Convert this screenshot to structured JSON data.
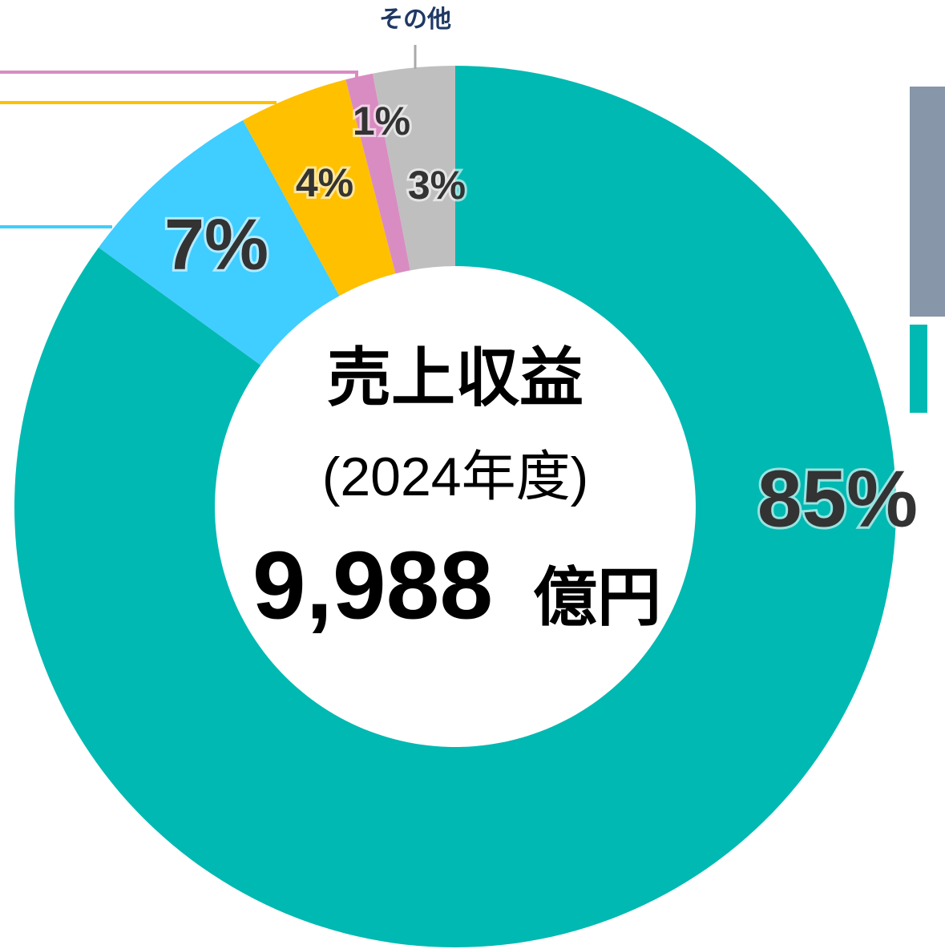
{
  "chart_data": {
    "type": "donut",
    "categories": [
      null,
      null,
      null,
      null,
      "その他"
    ],
    "values": [
      85,
      7,
      4,
      1,
      3
    ],
    "value_labels": [
      "85%",
      "7%",
      "4%",
      "1%",
      "3%"
    ],
    "colors": [
      "#00b9b2",
      "#40cdff",
      "#ffc000",
      "#d98cc2",
      "#bfbfbf"
    ],
    "center_title": "売上収益",
    "center_subtitle": "(2024年度)",
    "total": {
      "value": 9988,
      "label": "9,988"
    },
    "total_unit": "億円"
  }
}
